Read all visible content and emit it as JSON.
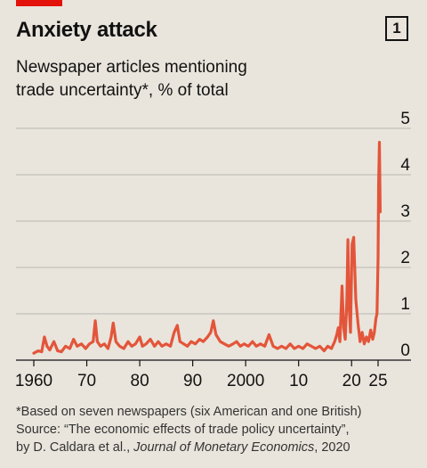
{
  "header": {
    "title": "Anxiety attack",
    "chart_number": "1",
    "subtitle_line1": "Newspaper articles mentioning",
    "subtitle_line2": "trade uncertainty*, % of total"
  },
  "footer": {
    "note": "*Based on seven newspapers (six American and one British)",
    "source_line1": "Source: “The economic effects of trade policy uncertainty”,",
    "source_line2_prefix": "by D. Caldara et al., ",
    "source_journal": "Journal of Monetary Economics",
    "source_line2_suffix": ", 2020"
  },
  "colors": {
    "series": "#e3553a",
    "accent": "#e3120b",
    "grid": "#b8b6b0",
    "text": "#121212"
  },
  "chart_data": {
    "type": "line",
    "title": "Anxiety attack",
    "subtitle": "Newspaper articles mentioning trade uncertainty*, % of total",
    "xlabel": "",
    "ylabel": "",
    "xlim": [
      1960,
      2025.8
    ],
    "ylim": [
      0,
      5
    ],
    "y_ticks": [
      0,
      1,
      2,
      3,
      4,
      5
    ],
    "y_tick_labels": [
      "0",
      "1",
      "2",
      "3",
      "4",
      "5"
    ],
    "x_ticks": [
      1960,
      1970,
      1980,
      1990,
      2000,
      2010,
      2020,
      2025
    ],
    "x_tick_labels": [
      "1960",
      "70",
      "80",
      "90",
      "2000",
      "10",
      "20",
      "25"
    ],
    "grid": "horizontal",
    "series": [
      {
        "color": "#e3553a",
        "x": [
          1960,
          1960.8,
          1961.5,
          1962,
          1962.5,
          1963,
          1963.8,
          1964.5,
          1965.2,
          1966,
          1966.8,
          1967.5,
          1968.2,
          1969,
          1969.8,
          1970.5,
          1971.2,
          1971.6,
          1972,
          1972.6,
          1973.3,
          1974,
          1974.6,
          1975,
          1975.5,
          1976.2,
          1977,
          1977.8,
          1978.5,
          1979.2,
          1980,
          1980.5,
          1981.2,
          1982,
          1982.8,
          1983.5,
          1984.2,
          1985,
          1985.8,
          1986.5,
          1987.1,
          1987.6,
          1988.3,
          1989,
          1989.7,
          1990.5,
          1991.3,
          1992,
          1992.8,
          1993.4,
          1993.9,
          1994.4,
          1995.2,
          1996,
          1996.8,
          1997.6,
          1998.3,
          1999,
          1999.7,
          2000.5,
          2001.3,
          2002,
          2002.8,
          2003.6,
          2004.4,
          2005.2,
          2006,
          2006.8,
          2007.6,
          2008.4,
          2009.2,
          2010,
          2010.8,
          2011.6,
          2012.4,
          2013.2,
          2014,
          2014.8,
          2015.5,
          2016.2,
          2016.8,
          2017.2,
          2017.5,
          2017.8,
          2018.2,
          2018.5,
          2018.8,
          2019.1,
          2019.3,
          2019.5,
          2019.8,
          2020.1,
          2020.4,
          2020.8,
          2021.2,
          2021.6,
          2022,
          2022.4,
          2022.8,
          2023.2,
          2023.6,
          2024,
          2024.3,
          2024.6,
          2024.8,
          2025,
          2025.1,
          2025.25,
          2025.4
        ],
        "values": [
          0.15,
          0.2,
          0.18,
          0.5,
          0.3,
          0.22,
          0.4,
          0.2,
          0.18,
          0.3,
          0.25,
          0.45,
          0.3,
          0.35,
          0.25,
          0.35,
          0.4,
          0.85,
          0.4,
          0.3,
          0.35,
          0.25,
          0.5,
          0.8,
          0.4,
          0.3,
          0.25,
          0.4,
          0.3,
          0.35,
          0.5,
          0.3,
          0.35,
          0.45,
          0.3,
          0.4,
          0.3,
          0.35,
          0.3,
          0.6,
          0.75,
          0.4,
          0.35,
          0.3,
          0.4,
          0.35,
          0.45,
          0.4,
          0.5,
          0.6,
          0.85,
          0.55,
          0.4,
          0.35,
          0.3,
          0.35,
          0.4,
          0.3,
          0.35,
          0.3,
          0.4,
          0.3,
          0.35,
          0.3,
          0.55,
          0.3,
          0.25,
          0.3,
          0.25,
          0.35,
          0.25,
          0.3,
          0.25,
          0.35,
          0.3,
          0.25,
          0.3,
          0.2,
          0.3,
          0.25,
          0.4,
          0.55,
          0.7,
          0.4,
          1.6,
          0.7,
          0.45,
          1.3,
          2.6,
          1.2,
          0.6,
          2.5,
          2.65,
          1.3,
          0.8,
          0.4,
          0.6,
          0.35,
          0.5,
          0.4,
          0.65,
          0.45,
          0.6,
          0.9,
          1.0,
          2.2,
          3.8,
          4.7,
          3.2
        ]
      }
    ]
  }
}
